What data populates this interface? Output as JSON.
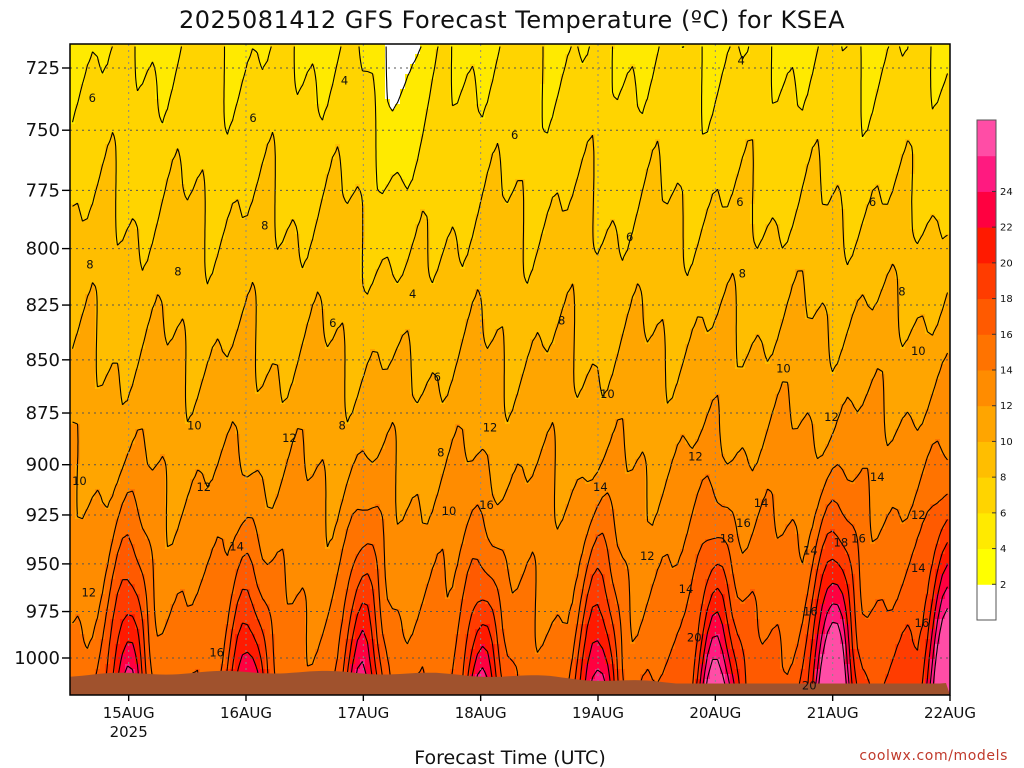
{
  "header": {
    "title": "2025081412 GFS Forecast Temperature (ºC) for KSEA"
  },
  "footer": {
    "xlabel": "Forecast Time (UTC)",
    "credit": "coolwx.com/models"
  },
  "colors": {
    "contour_line": "#000000",
    "ground": "#a0522d",
    "grid": "#555555",
    "band_below_2": "#ffffff",
    "bands": [
      "#ffff00",
      "#ffea00",
      "#ffd400",
      "#ffbe00",
      "#ffa500",
      "#ff8c00",
      "#ff7300",
      "#ff5a00",
      "#ff3c00",
      "#ff1a00",
      "#ff0040",
      "#ff1a80",
      "#ff4da6"
    ]
  },
  "chart_data": {
    "type": "heatmap",
    "title": "2025081412 GFS Forecast Temperature (ºC) for KSEA",
    "xlabel": "Forecast Time (UTC)",
    "ylabel": "",
    "x_ticks": [
      "15AUG",
      "16AUG",
      "17AUG",
      "18AUG",
      "19AUG",
      "20AUG",
      "21AUG",
      "22AUG"
    ],
    "x_tick_sublabel": "2025",
    "x_tick_days": [
      1,
      2,
      3,
      4,
      5,
      6,
      7,
      8
    ],
    "xlim_days": [
      0.5,
      8.0
    ],
    "y_ticks": [
      725,
      750,
      775,
      800,
      825,
      850,
      875,
      900,
      925,
      950,
      975,
      1000
    ],
    "ylim_hpa": [
      1015,
      711
    ],
    "y_scale": "log-pressure",
    "colorbar": {
      "levels": [
        2,
        4,
        6,
        8,
        10,
        12,
        14,
        16,
        18,
        20,
        22,
        24
      ],
      "below_first_color": "#ffffff",
      "colors": [
        "#ffff00",
        "#ffea00",
        "#ffd400",
        "#ffbe00",
        "#ffa500",
        "#ff8c00",
        "#ff7300",
        "#ff5a00",
        "#ff3c00",
        "#ff1a00",
        "#ff0040",
        "#ff1a80",
        "#ff4da6"
      ]
    },
    "contour_labels": [
      {
        "value": "4",
        "day": 2.84,
        "p": 730
      },
      {
        "value": "4",
        "day": 3.42,
        "p": 820
      },
      {
        "value": "4",
        "day": 6.22,
        "p": 722
      },
      {
        "value": "6",
        "day": 0.69,
        "p": 737
      },
      {
        "value": "6",
        "day": 2.06,
        "p": 745
      },
      {
        "value": "6",
        "day": 2.74,
        "p": 833
      },
      {
        "value": "6",
        "day": 3.63,
        "p": 858
      },
      {
        "value": "6",
        "day": 4.29,
        "p": 752
      },
      {
        "value": "6",
        "day": 5.27,
        "p": 795
      },
      {
        "value": "6",
        "day": 6.21,
        "p": 780
      },
      {
        "value": "6",
        "day": 7.34,
        "p": 780
      },
      {
        "value": "8",
        "day": 0.67,
        "p": 807
      },
      {
        "value": "8",
        "day": 1.42,
        "p": 810
      },
      {
        "value": "8",
        "day": 2.16,
        "p": 790
      },
      {
        "value": "8",
        "day": 2.82,
        "p": 881
      },
      {
        "value": "8",
        "day": 3.66,
        "p": 894
      },
      {
        "value": "8",
        "day": 4.69,
        "p": 832
      },
      {
        "value": "8",
        "day": 6.23,
        "p": 811
      },
      {
        "value": "8",
        "day": 7.59,
        "p": 819
      },
      {
        "value": "10",
        "day": 1.56,
        "p": 881
      },
      {
        "value": "10",
        "day": 0.58,
        "p": 908
      },
      {
        "value": "10",
        "day": 3.73,
        "p": 923
      },
      {
        "value": "10",
        "day": 5.08,
        "p": 866
      },
      {
        "value": "10",
        "day": 6.58,
        "p": 854
      },
      {
        "value": "10",
        "day": 7.73,
        "p": 846
      },
      {
        "value": "12",
        "day": 1.64,
        "p": 911
      },
      {
        "value": "12",
        "day": 2.37,
        "p": 887
      },
      {
        "value": "12",
        "day": 4.08,
        "p": 882
      },
      {
        "value": "12",
        "day": 5.42,
        "p": 946
      },
      {
        "value": "12",
        "day": 5.83,
        "p": 896
      },
      {
        "value": "12",
        "day": 6.99,
        "p": 877
      },
      {
        "value": "12",
        "day": 7.73,
        "p": 925
      },
      {
        "value": "12",
        "day": 0.66,
        "p": 965
      },
      {
        "value": "14",
        "day": 1.92,
        "p": 941
      },
      {
        "value": "14",
        "day": 5.02,
        "p": 911
      },
      {
        "value": "14",
        "day": 5.75,
        "p": 963
      },
      {
        "value": "14",
        "day": 6.39,
        "p": 919
      },
      {
        "value": "14",
        "day": 6.81,
        "p": 943
      },
      {
        "value": "14",
        "day": 7.38,
        "p": 906
      },
      {
        "value": "14",
        "day": 7.73,
        "p": 952
      },
      {
        "value": "16",
        "day": 1.75,
        "p": 997
      },
      {
        "value": "16",
        "day": 4.05,
        "p": 920
      },
      {
        "value": "16",
        "day": 6.24,
        "p": 929
      },
      {
        "value": "16",
        "day": 6.81,
        "p": 975
      },
      {
        "value": "16",
        "day": 7.22,
        "p": 937
      },
      {
        "value": "16",
        "day": 7.76,
        "p": 981
      },
      {
        "value": "18",
        "day": 6.1,
        "p": 937
      },
      {
        "value": "18",
        "day": 7.07,
        "p": 939
      },
      {
        "value": "20",
        "day": 5.82,
        "p": 989
      },
      {
        "value": "20",
        "day": 6.8,
        "p": 1015
      }
    ]
  }
}
